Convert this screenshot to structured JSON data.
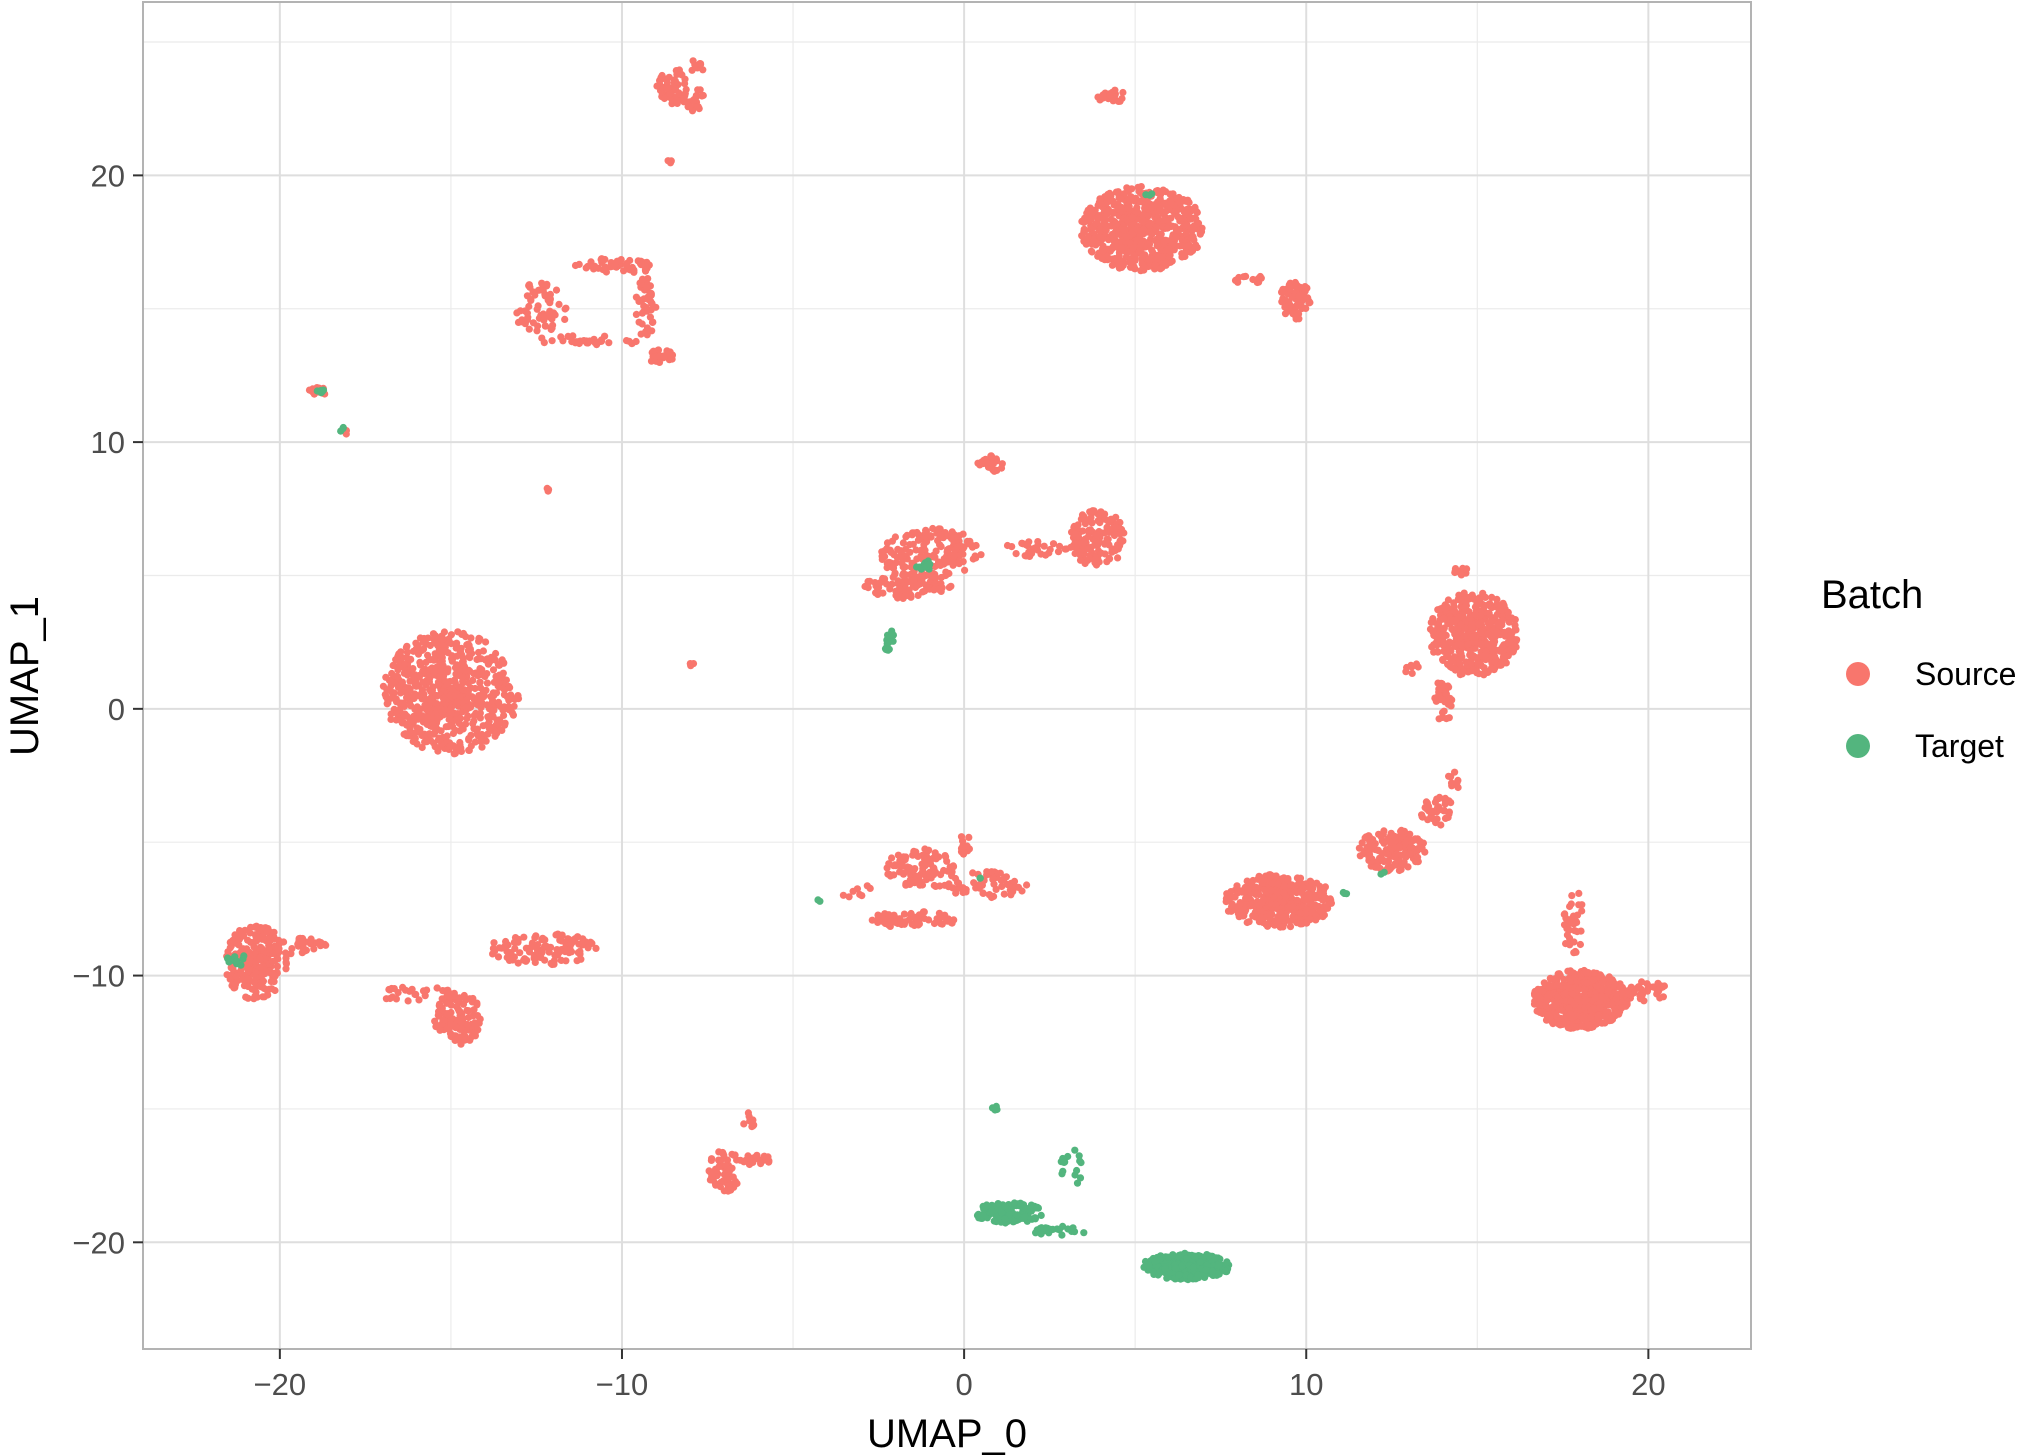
{
  "chart_data": {
    "type": "scatter",
    "xlabel": "UMAP_0",
    "ylabel": "UMAP_1",
    "xlim": [
      -24,
      23
    ],
    "ylim": [
      -24,
      26.5
    ],
    "x_ticks": [
      -20,
      -10,
      0,
      10,
      20
    ],
    "x_tick_labels": [
      "−20",
      "−10",
      "0",
      "10",
      "20"
    ],
    "y_ticks": [
      -20,
      -10,
      0,
      10,
      20
    ],
    "y_tick_labels": [
      "−20",
      "−10",
      "0",
      "10",
      "20"
    ],
    "grid": true,
    "legend": {
      "title": "Batch",
      "position": "right"
    },
    "series": [
      {
        "name": "Source",
        "color": "#F8766D",
        "clusters": [
          {
            "cx": -15.0,
            "cy": 0.6,
            "rx": 2.0,
            "ry": 2.3,
            "n": 650
          },
          {
            "cx": -20.7,
            "cy": -9.5,
            "rx": 0.9,
            "ry": 1.4,
            "n": 230
          },
          {
            "cx": -19.4,
            "cy": -8.9,
            "rx": 0.8,
            "ry": 0.3,
            "n": 35
          },
          {
            "cx": -14.8,
            "cy": -11.6,
            "rx": 0.7,
            "ry": 1.0,
            "n": 110
          },
          {
            "cx": -12.3,
            "cy": -9.0,
            "rx": 1.6,
            "ry": 0.6,
            "n": 110
          },
          {
            "cx": -16.0,
            "cy": -10.7,
            "rx": 1.2,
            "ry": 0.3,
            "n": 30
          },
          {
            "cx": -12.4,
            "cy": 15.0,
            "rx": 0.8,
            "ry": 1.0,
            "n": 60
          },
          {
            "cx": -10.2,
            "cy": 16.6,
            "rx": 1.2,
            "ry": 0.3,
            "n": 50
          },
          {
            "cx": -9.3,
            "cy": 15.0,
            "rx": 0.3,
            "ry": 1.2,
            "n": 40
          },
          {
            "cx": -8.9,
            "cy": 13.2,
            "rx": 0.4,
            "ry": 0.3,
            "n": 35
          },
          {
            "cx": -11.0,
            "cy": 13.8,
            "rx": 1.6,
            "ry": 0.2,
            "n": 30
          },
          {
            "cx": -8.5,
            "cy": 23.3,
            "rx": 0.5,
            "ry": 0.7,
            "n": 55
          },
          {
            "cx": -7.9,
            "cy": 22.9,
            "rx": 0.3,
            "ry": 0.5,
            "n": 20
          },
          {
            "cx": -7.8,
            "cy": 24.1,
            "rx": 0.2,
            "ry": 0.3,
            "n": 8
          },
          {
            "cx": -8.6,
            "cy": 20.6,
            "rx": 0.1,
            "ry": 0.15,
            "n": 3
          },
          {
            "cx": -18.9,
            "cy": 11.9,
            "rx": 0.3,
            "ry": 0.15,
            "n": 15
          },
          {
            "cx": -18.1,
            "cy": 10.4,
            "rx": 0.15,
            "ry": 0.15,
            "n": 4
          },
          {
            "cx": -12.2,
            "cy": 8.2,
            "rx": 0.08,
            "ry": 0.1,
            "n": 3
          },
          {
            "cx": -8.0,
            "cy": 1.7,
            "rx": 0.1,
            "ry": 0.1,
            "n": 3
          },
          {
            "cx": 5.2,
            "cy": 18.0,
            "rx": 1.8,
            "ry": 1.6,
            "n": 650
          },
          {
            "cx": 9.7,
            "cy": 15.3,
            "rx": 0.5,
            "ry": 0.7,
            "n": 70
          },
          {
            "cx": 8.3,
            "cy": 16.1,
            "rx": 0.6,
            "ry": 0.15,
            "n": 12
          },
          {
            "cx": 4.3,
            "cy": 23.0,
            "rx": 0.4,
            "ry": 0.3,
            "n": 20
          },
          {
            "cx": 0.8,
            "cy": 9.2,
            "rx": 0.4,
            "ry": 0.3,
            "n": 30
          },
          {
            "cx": -1.0,
            "cy": 5.8,
            "rx": 1.5,
            "ry": 1.0,
            "n": 180
          },
          {
            "cx": -1.6,
            "cy": 4.6,
            "rx": 1.3,
            "ry": 0.5,
            "n": 90
          },
          {
            "cx": 3.9,
            "cy": 6.4,
            "rx": 0.8,
            "ry": 1.1,
            "n": 140
          },
          {
            "cx": 2.0,
            "cy": 6.0,
            "rx": 1.2,
            "ry": 0.3,
            "n": 30
          },
          {
            "cx": 14.9,
            "cy": 2.8,
            "rx": 1.3,
            "ry": 1.6,
            "n": 450
          },
          {
            "cx": 14.0,
            "cy": 0.3,
            "rx": 0.3,
            "ry": 0.8,
            "n": 35
          },
          {
            "cx": 14.6,
            "cy": 5.2,
            "rx": 0.3,
            "ry": 0.2,
            "n": 10
          },
          {
            "cx": 13.1,
            "cy": 1.5,
            "rx": 0.3,
            "ry": 0.2,
            "n": 8
          },
          {
            "cx": 12.5,
            "cy": -5.3,
            "rx": 1.0,
            "ry": 0.8,
            "n": 160
          },
          {
            "cx": 13.8,
            "cy": -3.8,
            "rx": 0.5,
            "ry": 0.6,
            "n": 40
          },
          {
            "cx": 14.3,
            "cy": -2.7,
            "rx": 0.2,
            "ry": 0.4,
            "n": 10
          },
          {
            "cx": 9.2,
            "cy": -7.2,
            "rx": 1.6,
            "ry": 1.0,
            "n": 380
          },
          {
            "cx": -1.3,
            "cy": -6.0,
            "rx": 1.0,
            "ry": 0.8,
            "n": 100
          },
          {
            "cx": 0.7,
            "cy": -6.6,
            "rx": 1.3,
            "ry": 0.5,
            "n": 60
          },
          {
            "cx": -1.5,
            "cy": -7.9,
            "rx": 1.3,
            "ry": 0.3,
            "n": 70
          },
          {
            "cx": -3.2,
            "cy": -6.8,
            "rx": 0.6,
            "ry": 0.3,
            "n": 8
          },
          {
            "cx": 0.0,
            "cy": -5.0,
            "rx": 0.2,
            "ry": 0.5,
            "n": 10
          },
          {
            "cx": 18.0,
            "cy": -10.9,
            "rx": 1.4,
            "ry": 1.1,
            "n": 550
          },
          {
            "cx": 19.8,
            "cy": -10.6,
            "rx": 0.8,
            "ry": 0.4,
            "n": 40
          },
          {
            "cx": 17.8,
            "cy": -8.0,
            "rx": 0.3,
            "ry": 1.3,
            "n": 35
          },
          {
            "cx": -7.0,
            "cy": -17.3,
            "rx": 0.5,
            "ry": 0.8,
            "n": 60
          },
          {
            "cx": -6.1,
            "cy": -16.9,
            "rx": 0.5,
            "ry": 0.2,
            "n": 20
          },
          {
            "cx": -6.3,
            "cy": -15.4,
            "rx": 0.2,
            "ry": 0.4,
            "n": 8
          }
        ]
      },
      {
        "name": "Target",
        "color": "#53B57E",
        "clusters": [
          {
            "cx": 6.5,
            "cy": -20.9,
            "rx": 1.3,
            "ry": 0.5,
            "n": 300
          },
          {
            "cx": 1.3,
            "cy": -18.9,
            "rx": 1.0,
            "ry": 0.4,
            "n": 120
          },
          {
            "cx": 2.9,
            "cy": -19.6,
            "rx": 1.0,
            "ry": 0.2,
            "n": 20
          },
          {
            "cx": 3.2,
            "cy": -17.2,
            "rx": 0.4,
            "ry": 0.8,
            "n": 15
          },
          {
            "cx": 0.9,
            "cy": -15.0,
            "rx": 0.1,
            "ry": 0.15,
            "n": 5
          },
          {
            "cx": -2.2,
            "cy": 2.6,
            "rx": 0.15,
            "ry": 0.7,
            "n": 20
          },
          {
            "cx": -1.2,
            "cy": 5.4,
            "rx": 0.3,
            "ry": 0.2,
            "n": 12
          },
          {
            "cx": -21.3,
            "cy": -9.4,
            "rx": 0.3,
            "ry": 0.3,
            "n": 12
          },
          {
            "cx": -18.8,
            "cy": 11.9,
            "rx": 0.15,
            "ry": 0.1,
            "n": 5
          },
          {
            "cx": -18.2,
            "cy": 10.5,
            "rx": 0.1,
            "ry": 0.1,
            "n": 3
          },
          {
            "cx": 5.4,
            "cy": 19.3,
            "rx": 0.1,
            "ry": 0.1,
            "n": 3
          },
          {
            "cx": -4.3,
            "cy": -7.2,
            "rx": 0.1,
            "ry": 0.1,
            "n": 2
          },
          {
            "cx": 0.4,
            "cy": -6.3,
            "rx": 0.1,
            "ry": 0.1,
            "n": 2
          },
          {
            "cx": 11.0,
            "cy": -6.9,
            "rx": 0.2,
            "ry": 0.1,
            "n": 4
          },
          {
            "cx": 12.2,
            "cy": -6.1,
            "rx": 0.1,
            "ry": 0.1,
            "n": 2
          }
        ]
      }
    ]
  }
}
